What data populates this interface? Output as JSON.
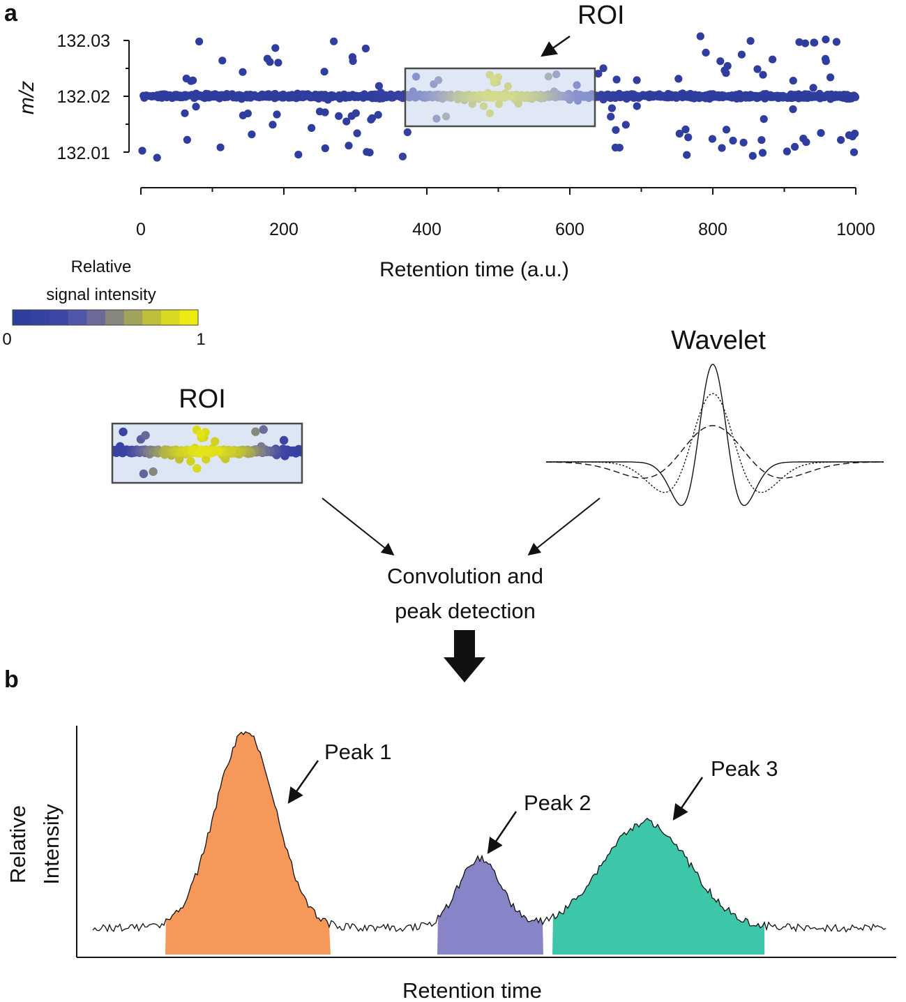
{
  "panel_a": {
    "letter": "a",
    "roi_label": "ROI",
    "y_axis_label": "m/z",
    "x_axis_label": "Retention time (a.u.)",
    "colorbar": {
      "title_line1": "Relative",
      "title_line2": "signal intensity",
      "min_label": "0",
      "max_label": "1",
      "colors": [
        "#2e3e9e",
        "#3642a0",
        "#3e46a4",
        "#5056a8",
        "#6c6a98",
        "#86867c",
        "#a1a25c",
        "#bebf3c",
        "#d8d822",
        "#ecea10"
      ]
    }
  },
  "middle": {
    "roi_label": "ROI",
    "wavelet_label": "Wavelet",
    "convolution_line1": "Convolution and",
    "convolution_line2": "peak detection"
  },
  "panel_b": {
    "letter": "b",
    "y_axis_line1": "Relative",
    "y_axis_line2": "Intensity",
    "x_axis_label": "Retention time",
    "peaks": [
      {
        "label": "Peak 1",
        "color": "#f5985a"
      },
      {
        "label": "Peak 2",
        "color": "#8784c7"
      },
      {
        "label": "Peak 3",
        "color": "#3ec6a8"
      }
    ]
  },
  "chart_data": {
    "type": "scatter",
    "xlabel": "Retention time (a.u.)",
    "ylabel": "m/z",
    "xlim": [
      0,
      1000
    ],
    "ylim": [
      132.005,
      132.031
    ],
    "x_ticks": [
      "0",
      "200",
      "400",
      "600",
      "800",
      "1000"
    ],
    "y_ticks": [
      "132.01",
      "132.02",
      "132.03"
    ],
    "center_mz": 132.02,
    "roi": {
      "x_range": [
        370,
        636
      ],
      "mz_range": [
        132.0155,
        132.0255
      ]
    },
    "colorbar_range": [
      0,
      1
    ]
  }
}
